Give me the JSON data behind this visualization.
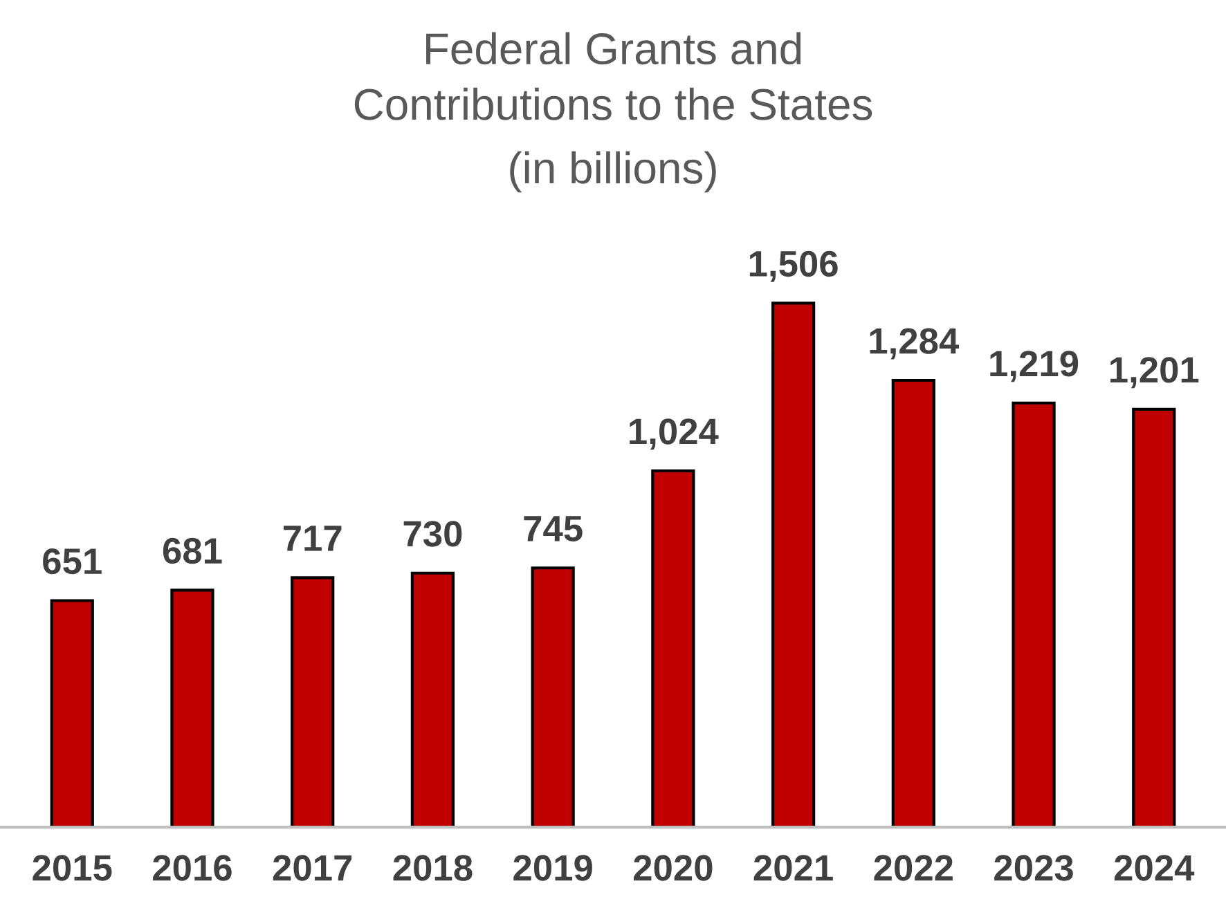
{
  "chart_data": {
    "type": "bar",
    "title": "Federal Grants and\nContributions to the States",
    "subtitle": "(in billions)",
    "categories": [
      "2015",
      "2016",
      "2017",
      "2018",
      "2019",
      "2020",
      "2021",
      "2022",
      "2023",
      "2024"
    ],
    "values": [
      651,
      681,
      717,
      730,
      745,
      1024,
      1506,
      1284,
      1219,
      1201
    ],
    "value_labels": [
      "651",
      "681",
      "717",
      "730",
      "745",
      "1,024",
      "1,506",
      "1,284",
      "1,219",
      "1,201"
    ],
    "color": "#c00000",
    "tick_labels": "x",
    "grid": false,
    "legend": false
  }
}
